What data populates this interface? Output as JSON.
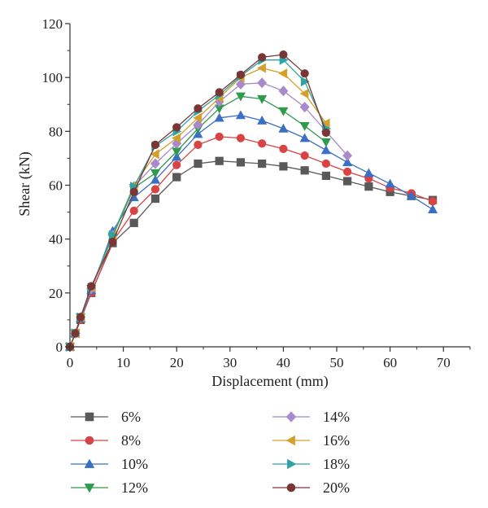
{
  "chart_data": {
    "type": "line",
    "title": "",
    "xlabel": "Displacement (mm)",
    "ylabel": "Shear (kN)",
    "xlim": [
      0,
      75
    ],
    "ylim": [
      0,
      120
    ],
    "x_ticks": [
      0,
      10,
      20,
      30,
      40,
      50,
      60,
      70
    ],
    "y_ticks": [
      0,
      20,
      40,
      60,
      80,
      100,
      120
    ],
    "grid": false,
    "legend_position": "bottom",
    "series": [
      {
        "name": "6%",
        "color": "#595959",
        "marker": "square",
        "x": [
          0,
          1,
          2,
          4,
          8,
          12,
          16,
          20,
          24,
          28,
          32,
          36,
          40,
          44,
          48,
          52,
          56,
          60,
          64,
          68
        ],
        "y": [
          0,
          5,
          10,
          20,
          38.5,
          46,
          55,
          63,
          68,
          69,
          68.5,
          68,
          67,
          65.5,
          63.5,
          61.5,
          59.5,
          57.5,
          56,
          54.5
        ]
      },
      {
        "name": "8%",
        "color": "#d94343",
        "marker": "circle",
        "x": [
          0,
          1,
          2,
          4,
          8,
          12,
          16,
          20,
          24,
          28,
          32,
          36,
          40,
          44,
          48,
          52,
          56,
          60,
          64,
          68
        ],
        "y": [
          0,
          5,
          10,
          20,
          39,
          50.5,
          58.5,
          67.5,
          75,
          78,
          77.5,
          75.5,
          73.5,
          71,
          68,
          65,
          62.5,
          59,
          57,
          54
        ]
      },
      {
        "name": "10%",
        "color": "#3a6fc4",
        "marker": "triangle-up",
        "x": [
          0,
          1,
          2,
          4,
          8,
          12,
          16,
          20,
          24,
          28,
          32,
          36,
          40,
          44,
          48,
          52,
          56,
          60,
          64,
          68
        ],
        "y": [
          0,
          5,
          10.5,
          21,
          43,
          55.5,
          62,
          70.5,
          79,
          85,
          86,
          84,
          81,
          77.5,
          73,
          68.5,
          64.5,
          60.5,
          56,
          51
        ]
      },
      {
        "name": "12%",
        "color": "#2f9a4e",
        "marker": "triangle-down",
        "x": [
          0,
          1,
          2,
          4,
          8,
          12,
          16,
          20,
          24,
          28,
          32,
          36,
          40,
          44,
          48
        ],
        "y": [
          0,
          5,
          11,
          21.5,
          41,
          59,
          64.5,
          72.5,
          81,
          88.5,
          93,
          92,
          87.5,
          82,
          76
        ]
      },
      {
        "name": "14%",
        "color": "#a889c9",
        "marker": "diamond",
        "x": [
          0,
          1,
          2,
          4,
          8,
          12,
          16,
          20,
          24,
          28,
          32,
          36,
          40,
          44,
          48,
          52
        ],
        "y": [
          0,
          5,
          11,
          21.5,
          41.5,
          59.5,
          68,
          75.5,
          82.5,
          91,
          97.5,
          98,
          95,
          89,
          80,
          71
        ]
      },
      {
        "name": "16%",
        "color": "#d4a02a",
        "marker": "triangle-left",
        "x": [
          0,
          1,
          2,
          4,
          8,
          12,
          16,
          20,
          24,
          28,
          32,
          36,
          40,
          44,
          48
        ],
        "y": [
          0,
          5,
          11,
          22,
          41.5,
          60,
          71.5,
          77.5,
          85,
          92.5,
          100,
          103.5,
          101.5,
          94,
          83
        ]
      },
      {
        "name": "18%",
        "color": "#2ea3a3",
        "marker": "triangle-right",
        "x": [
          0,
          1,
          2,
          4,
          8,
          12,
          16,
          20,
          24,
          28,
          32,
          36,
          40,
          44,
          48
        ],
        "y": [
          0,
          5,
          11,
          22,
          41.5,
          59.5,
          74.5,
          80,
          87.5,
          93.5,
          100.5,
          106.5,
          106.5,
          98.5,
          81
        ]
      },
      {
        "name": "20%",
        "color": "#7a3535",
        "marker": "circle",
        "x": [
          0,
          1,
          2,
          4,
          8,
          12,
          16,
          20,
          24,
          28,
          32,
          36,
          40,
          44,
          48
        ],
        "y": [
          0,
          5,
          11,
          22.5,
          39,
          57.5,
          75,
          81.5,
          88.5,
          94.5,
          101,
          107.5,
          108.5,
          101.5,
          79.5
        ]
      }
    ]
  }
}
